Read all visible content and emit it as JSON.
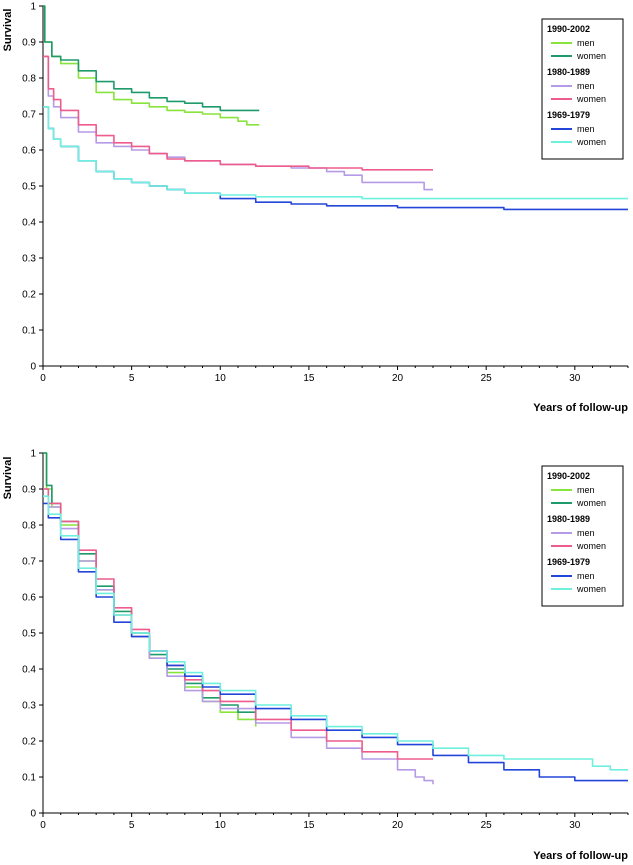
{
  "colors": {
    "m9002": "#88e33c",
    "w9002": "#1f9a6b",
    "m8089": "#b59ae6",
    "w8089": "#ee5c8e",
    "m6979": "#2346d9",
    "w6979": "#6ff0de"
  },
  "chart_data": [
    {
      "type": "line",
      "ylabel": "Survival",
      "xlabel": "Years of follow-up",
      "xlim": [
        0,
        33
      ],
      "ylim": [
        0,
        1
      ],
      "xticks": [
        "0",
        "5",
        "10",
        "15",
        "20",
        "25",
        "30"
      ],
      "yticks": [
        "0",
        "0.1",
        "0.2",
        "0.3",
        "0.4",
        "0.5",
        "0.6",
        "0.7",
        "0.8",
        "0.9",
        "1"
      ],
      "legend": [
        {
          "group": "1990-2002",
          "items": [
            {
              "label": "men",
              "color_key": "m9002"
            },
            {
              "label": "women",
              "color_key": "w9002"
            }
          ]
        },
        {
          "group": "1980-1989",
          "items": [
            {
              "label": "men",
              "color_key": "m8089"
            },
            {
              "label": "women",
              "color_key": "w8089"
            }
          ]
        },
        {
          "group": "1969-1979",
          "items": [
            {
              "label": "men",
              "color_key": "m6979"
            },
            {
              "label": "women",
              "color_key": "w6979"
            }
          ]
        }
      ],
      "legend_position": "top-right",
      "series": [
        {
          "name": "1990-2002 men",
          "color_key": "m9002",
          "points": [
            [
              0,
              1
            ],
            [
              0.1,
              0.9
            ],
            [
              0.5,
              0.86
            ],
            [
              1,
              0.84
            ],
            [
              2,
              0.8
            ],
            [
              3,
              0.76
            ],
            [
              4,
              0.74
            ],
            [
              5,
              0.73
            ],
            [
              6,
              0.72
            ],
            [
              7,
              0.71
            ],
            [
              8,
              0.705
            ],
            [
              9,
              0.7
            ],
            [
              10,
              0.69
            ],
            [
              11,
              0.68
            ],
            [
              11.5,
              0.67
            ],
            [
              12.2,
              0.67
            ]
          ]
        },
        {
          "name": "1990-2002 women",
          "color_key": "w9002",
          "points": [
            [
              0,
              1
            ],
            [
              0.1,
              0.9
            ],
            [
              0.5,
              0.86
            ],
            [
              1,
              0.85
            ],
            [
              2,
              0.82
            ],
            [
              3,
              0.79
            ],
            [
              4,
              0.77
            ],
            [
              5,
              0.76
            ],
            [
              6,
              0.745
            ],
            [
              7,
              0.735
            ],
            [
              8,
              0.73
            ],
            [
              9,
              0.72
            ],
            [
              10,
              0.71
            ],
            [
              11,
              0.71
            ],
            [
              12.2,
              0.71
            ]
          ]
        },
        {
          "name": "1980-1989 men",
          "color_key": "m8089",
          "points": [
            [
              0,
              0.86
            ],
            [
              0.3,
              0.75
            ],
            [
              0.6,
              0.72
            ],
            [
              1,
              0.69
            ],
            [
              2,
              0.65
            ],
            [
              3,
              0.62
            ],
            [
              4,
              0.61
            ],
            [
              5,
              0.6
            ],
            [
              6,
              0.59
            ],
            [
              7,
              0.58
            ],
            [
              8,
              0.57
            ],
            [
              10,
              0.56
            ],
            [
              12,
              0.555
            ],
            [
              14,
              0.55
            ],
            [
              16,
              0.54
            ],
            [
              17,
              0.53
            ],
            [
              18,
              0.51
            ],
            [
              20,
              0.51
            ],
            [
              21,
              0.51
            ],
            [
              21.5,
              0.49
            ],
            [
              22,
              0.49
            ]
          ]
        },
        {
          "name": "1980-1989 women",
          "color_key": "w8089",
          "points": [
            [
              0,
              0.86
            ],
            [
              0.3,
              0.77
            ],
            [
              0.6,
              0.74
            ],
            [
              1,
              0.71
            ],
            [
              2,
              0.67
            ],
            [
              3,
              0.64
            ],
            [
              4,
              0.62
            ],
            [
              5,
              0.61
            ],
            [
              6,
              0.59
            ],
            [
              7,
              0.575
            ],
            [
              8,
              0.57
            ],
            [
              10,
              0.56
            ],
            [
              12,
              0.555
            ],
            [
              15,
              0.55
            ],
            [
              18,
              0.545
            ],
            [
              20,
              0.545
            ],
            [
              22,
              0.545
            ]
          ]
        },
        {
          "name": "1969-1979 men",
          "color_key": "m6979",
          "points": [
            [
              0,
              0.72
            ],
            [
              0.3,
              0.66
            ],
            [
              0.6,
              0.63
            ],
            [
              1,
              0.61
            ],
            [
              2,
              0.57
            ],
            [
              3,
              0.54
            ],
            [
              4,
              0.52
            ],
            [
              5,
              0.51
            ],
            [
              6,
              0.5
            ],
            [
              7,
              0.49
            ],
            [
              8,
              0.48
            ],
            [
              10,
              0.465
            ],
            [
              12,
              0.455
            ],
            [
              14,
              0.45
            ],
            [
              16,
              0.445
            ],
            [
              18,
              0.445
            ],
            [
              20,
              0.44
            ],
            [
              22,
              0.44
            ],
            [
              24,
              0.44
            ],
            [
              25.7,
              0.44
            ],
            [
              26,
              0.435
            ],
            [
              33,
              0.435
            ]
          ]
        },
        {
          "name": "1969-1979 women",
          "color_key": "w6979",
          "points": [
            [
              0,
              0.72
            ],
            [
              0.3,
              0.66
            ],
            [
              0.6,
              0.63
            ],
            [
              1,
              0.61
            ],
            [
              2,
              0.57
            ],
            [
              3,
              0.54
            ],
            [
              4,
              0.52
            ],
            [
              5,
              0.51
            ],
            [
              6,
              0.5
            ],
            [
              7,
              0.49
            ],
            [
              8,
              0.48
            ],
            [
              10,
              0.475
            ],
            [
              12,
              0.47
            ],
            [
              15,
              0.47
            ],
            [
              17.5,
              0.47
            ],
            [
              18,
              0.465
            ],
            [
              33,
              0.465
            ]
          ]
        }
      ]
    },
    {
      "type": "line",
      "ylabel": "Survival",
      "xlabel": "Years of follow-up",
      "xlim": [
        0,
        33
      ],
      "ylim": [
        0,
        1
      ],
      "xticks": [
        "0",
        "5",
        "10",
        "15",
        "20",
        "25",
        "30"
      ],
      "yticks": [
        "0",
        "0.1",
        "0.2",
        "0.3",
        "0.4",
        "0.5",
        "0.6",
        "0.7",
        "0.8",
        "0.9",
        "1"
      ],
      "legend": [
        {
          "group": "1990-2002",
          "items": [
            {
              "label": "men",
              "color_key": "m9002"
            },
            {
              "label": "women",
              "color_key": "w9002"
            }
          ]
        },
        {
          "group": "1980-1989",
          "items": [
            {
              "label": "men",
              "color_key": "m8089"
            },
            {
              "label": "women",
              "color_key": "w8089"
            }
          ]
        },
        {
          "group": "1969-1979",
          "items": [
            {
              "label": "men",
              "color_key": "m6979"
            },
            {
              "label": "women",
              "color_key": "w6979"
            }
          ]
        }
      ],
      "legend_position": "top-right",
      "series": [
        {
          "name": "1990-2002 men",
          "color_key": "m9002",
          "points": [
            [
              0,
              1
            ],
            [
              0.2,
              0.9
            ],
            [
              0.5,
              0.85
            ],
            [
              1,
              0.8
            ],
            [
              2,
              0.7
            ],
            [
              3,
              0.62
            ],
            [
              4,
              0.55
            ],
            [
              5,
              0.49
            ],
            [
              6,
              0.43
            ],
            [
              7,
              0.39
            ],
            [
              8,
              0.35
            ],
            [
              9,
              0.31
            ],
            [
              10,
              0.28
            ],
            [
              11,
              0.26
            ],
            [
              12,
              0.24
            ]
          ]
        },
        {
          "name": "1990-2002 women",
          "color_key": "w9002",
          "points": [
            [
              0,
              1
            ],
            [
              0.2,
              0.91
            ],
            [
              0.5,
              0.86
            ],
            [
              1,
              0.81
            ],
            [
              2,
              0.72
            ],
            [
              3,
              0.63
            ],
            [
              4,
              0.56
            ],
            [
              5,
              0.5
            ],
            [
              6,
              0.44
            ],
            [
              7,
              0.4
            ],
            [
              8,
              0.36
            ],
            [
              9,
              0.32
            ],
            [
              10,
              0.3
            ],
            [
              11,
              0.28
            ],
            [
              12,
              0.26
            ]
          ]
        },
        {
          "name": "1980-1989 men",
          "color_key": "m8089",
          "points": [
            [
              0,
              0.9
            ],
            [
              0.3,
              0.85
            ],
            [
              1,
              0.79
            ],
            [
              2,
              0.7
            ],
            [
              3,
              0.62
            ],
            [
              4,
              0.55
            ],
            [
              5,
              0.49
            ],
            [
              6,
              0.43
            ],
            [
              7,
              0.38
            ],
            [
              8,
              0.34
            ],
            [
              9,
              0.31
            ],
            [
              10,
              0.29
            ],
            [
              12,
              0.25
            ],
            [
              14,
              0.21
            ],
            [
              16,
              0.18
            ],
            [
              18,
              0.15
            ],
            [
              20,
              0.12
            ],
            [
              21,
              0.1
            ],
            [
              21.5,
              0.09
            ],
            [
              22,
              0.08
            ]
          ]
        },
        {
          "name": "1980-1989 women",
          "color_key": "w8089",
          "points": [
            [
              0,
              0.9
            ],
            [
              0.3,
              0.86
            ],
            [
              1,
              0.81
            ],
            [
              2,
              0.73
            ],
            [
              3,
              0.65
            ],
            [
              4,
              0.57
            ],
            [
              5,
              0.51
            ],
            [
              6,
              0.45
            ],
            [
              7,
              0.41
            ],
            [
              8,
              0.37
            ],
            [
              9,
              0.34
            ],
            [
              10,
              0.31
            ],
            [
              12,
              0.26
            ],
            [
              14,
              0.23
            ],
            [
              16,
              0.2
            ],
            [
              18,
              0.17
            ],
            [
              20,
              0.15
            ],
            [
              22,
              0.15
            ]
          ]
        },
        {
          "name": "1969-1979 men",
          "color_key": "m6979",
          "points": [
            [
              0,
              0.86
            ],
            [
              0.3,
              0.82
            ],
            [
              1,
              0.76
            ],
            [
              2,
              0.67
            ],
            [
              3,
              0.6
            ],
            [
              4,
              0.53
            ],
            [
              5,
              0.49
            ],
            [
              6,
              0.45
            ],
            [
              7,
              0.41
            ],
            [
              8,
              0.38
            ],
            [
              9,
              0.35
            ],
            [
              10,
              0.33
            ],
            [
              12,
              0.29
            ],
            [
              14,
              0.26
            ],
            [
              16,
              0.23
            ],
            [
              18,
              0.21
            ],
            [
              20,
              0.19
            ],
            [
              22,
              0.16
            ],
            [
              24,
              0.14
            ],
            [
              26,
              0.12
            ],
            [
              28,
              0.1
            ],
            [
              30,
              0.09
            ],
            [
              33,
              0.09
            ]
          ]
        },
        {
          "name": "1969-1979 women",
          "color_key": "w6979",
          "points": [
            [
              0,
              0.88
            ],
            [
              0.3,
              0.83
            ],
            [
              1,
              0.77
            ],
            [
              2,
              0.68
            ],
            [
              3,
              0.61
            ],
            [
              4,
              0.55
            ],
            [
              5,
              0.5
            ],
            [
              6,
              0.45
            ],
            [
              7,
              0.42
            ],
            [
              8,
              0.39
            ],
            [
              9,
              0.36
            ],
            [
              10,
              0.34
            ],
            [
              12,
              0.3
            ],
            [
              14,
              0.27
            ],
            [
              16,
              0.24
            ],
            [
              18,
              0.22
            ],
            [
              20,
              0.2
            ],
            [
              22,
              0.18
            ],
            [
              24,
              0.16
            ],
            [
              26,
              0.15
            ],
            [
              30,
              0.15
            ],
            [
              31,
              0.13
            ],
            [
              32,
              0.12
            ],
            [
              33,
              0.12
            ]
          ]
        }
      ]
    }
  ]
}
